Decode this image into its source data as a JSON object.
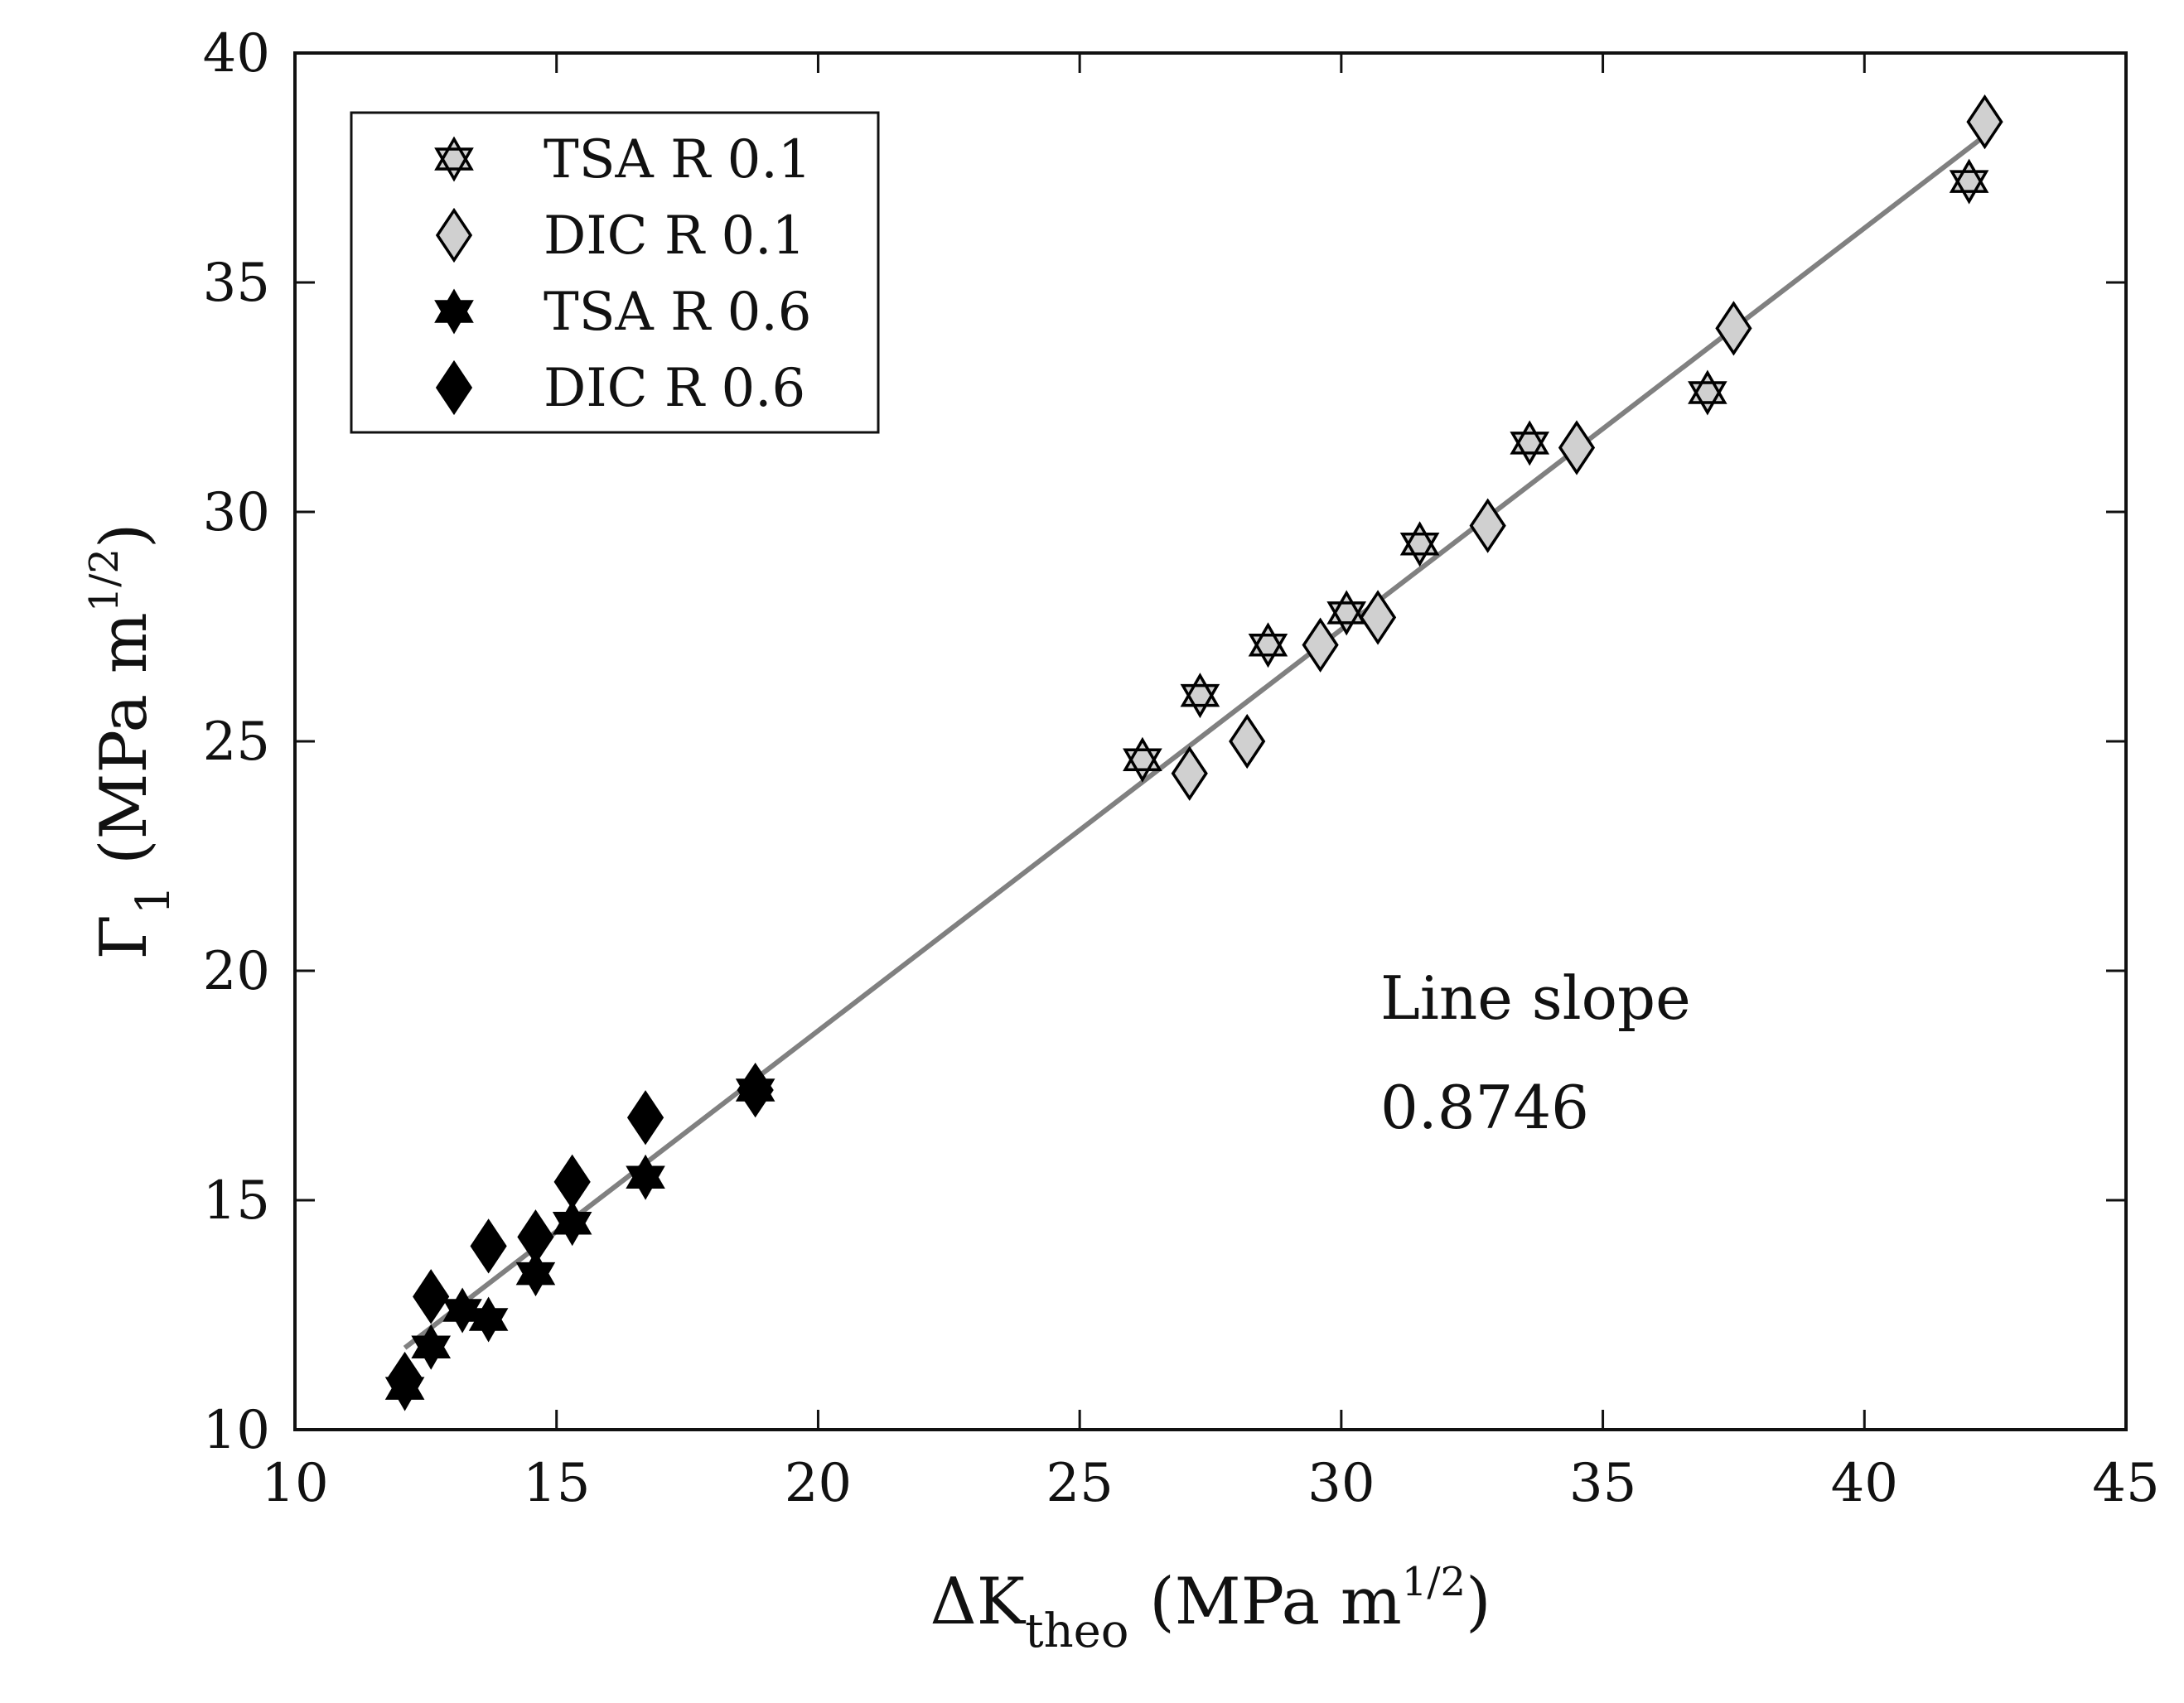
{
  "chart_data": {
    "type": "scatter",
    "title": "",
    "xlabel": {
      "prefix": "ΔK",
      "subscript": "theo",
      "units_open": " (MPa m",
      "superscript": "1/2",
      "units_close": ")"
    },
    "ylabel": {
      "prefix": "Γ",
      "subscript": "1",
      "units_open": " (MPa m",
      "superscript": "1/2",
      "units_close": ")"
    },
    "xlim": [
      10,
      45
    ],
    "ylim": [
      10,
      40
    ],
    "xticks": [
      10,
      15,
      20,
      25,
      30,
      35,
      40,
      45
    ],
    "yticks": [
      10,
      15,
      20,
      25,
      30,
      35,
      40
    ],
    "grid": false,
    "legend_position": "top-left",
    "series": [
      {
        "name": "TSA R 0.1",
        "marker": "hexagram",
        "fill": "#d0d0d0",
        "points": [
          [
            26.2,
            24.6
          ],
          [
            27.3,
            26.0
          ],
          [
            28.6,
            27.1
          ],
          [
            30.1,
            27.8
          ],
          [
            31.5,
            29.3
          ],
          [
            33.6,
            31.5
          ],
          [
            37.0,
            32.6
          ],
          [
            42.0,
            37.2
          ]
        ]
      },
      {
        "name": "DIC R 0.1",
        "marker": "diamond",
        "fill": "#d0d0d0",
        "points": [
          [
            27.1,
            24.3
          ],
          [
            28.2,
            25.0
          ],
          [
            29.6,
            27.1
          ],
          [
            30.7,
            27.7
          ],
          [
            32.8,
            29.7
          ],
          [
            34.5,
            31.4
          ],
          [
            37.5,
            34.0
          ],
          [
            42.3,
            38.5
          ]
        ]
      },
      {
        "name": "TSA R 0.6",
        "marker": "hexagram",
        "fill": "#000000",
        "points": [
          [
            12.1,
            10.9
          ],
          [
            12.6,
            11.8
          ],
          [
            13.2,
            12.6
          ],
          [
            13.7,
            12.4
          ],
          [
            14.6,
            13.4
          ],
          [
            15.3,
            14.5
          ],
          [
            16.7,
            15.5
          ],
          [
            18.8,
            17.4
          ]
        ]
      },
      {
        "name": "DIC R 0.6",
        "marker": "diamond",
        "fill": "#000000",
        "points": [
          [
            12.1,
            11.1
          ],
          [
            12.6,
            12.9
          ],
          [
            13.7,
            14.0
          ],
          [
            14.6,
            14.2
          ],
          [
            15.3,
            15.4
          ],
          [
            16.7,
            16.8
          ],
          [
            18.8,
            17.4
          ]
        ]
      }
    ],
    "fit_line": {
      "slope": 0.8746,
      "intercept": 1.2,
      "x_range": [
        12.1,
        42.3
      ],
      "color": "#808080"
    },
    "annotations": [
      "Line slope",
      "0.8746"
    ],
    "colors": {
      "axis": "#111111",
      "fit": "#808080",
      "light_fill": "#d0d0d0",
      "dark_fill": "#000000"
    }
  }
}
